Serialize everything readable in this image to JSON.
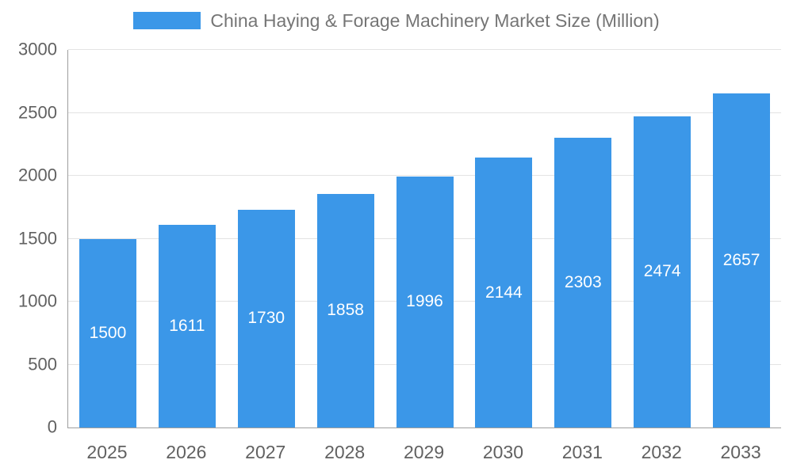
{
  "chart_data": {
    "type": "bar",
    "title": "China Haying & Forage Machinery Market Size (Million)",
    "categories": [
      "2025",
      "2026",
      "2027",
      "2028",
      "2029",
      "2030",
      "2031",
      "2032",
      "2033"
    ],
    "values": [
      1500,
      1611,
      1730,
      1858,
      1996,
      2144,
      2303,
      2474,
      2657
    ],
    "ylim": [
      0,
      3000
    ],
    "yticks": [
      0,
      500,
      1000,
      1500,
      2000,
      2500,
      3000
    ],
    "legend_position": "top",
    "grid": true,
    "colors": {
      "bar": "#3b97e8",
      "bar_value_label": "#ffffff",
      "axis_text": "#616161",
      "legend_text": "#757575",
      "gridline": "#e3e3e3",
      "axis_line": "#9e9e9e"
    }
  }
}
